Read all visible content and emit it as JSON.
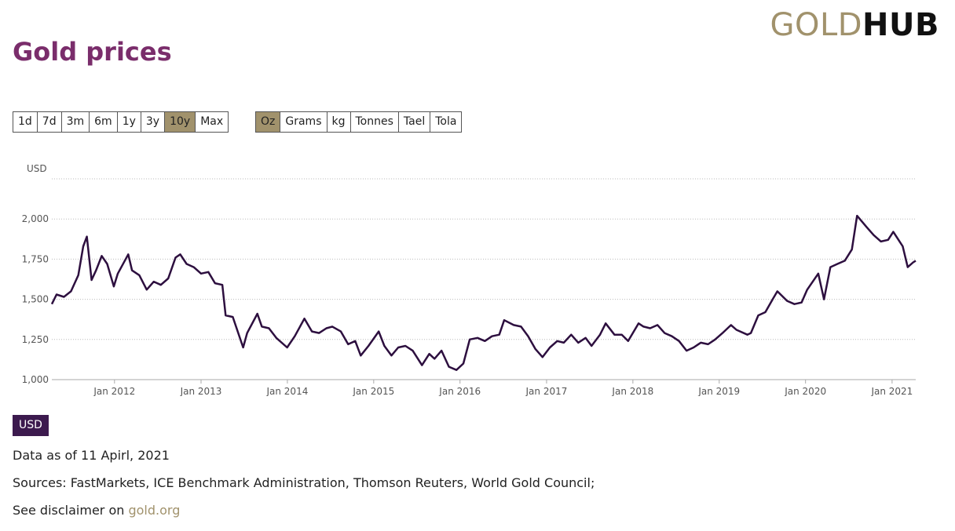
{
  "header": {
    "title": "Gold prices",
    "logo_gold": "GOLD",
    "logo_hub": "HUB"
  },
  "colors": {
    "title": "#7a2d6b",
    "logo_gold": "#a1926c",
    "active_button": "#a1926c",
    "line": "#2d0f3f",
    "badge": "#3c1a4e",
    "link": "#a1926c"
  },
  "period_buttons": [
    {
      "label": "1d",
      "active": false
    },
    {
      "label": "7d",
      "active": false
    },
    {
      "label": "3m",
      "active": false
    },
    {
      "label": "6m",
      "active": false
    },
    {
      "label": "1y",
      "active": false
    },
    {
      "label": "3y",
      "active": false
    },
    {
      "label": "10y",
      "active": true
    },
    {
      "label": "Max",
      "active": false
    }
  ],
  "unit_buttons": [
    {
      "label": "Oz",
      "active": true
    },
    {
      "label": "Grams",
      "active": false
    },
    {
      "label": "kg",
      "active": false
    },
    {
      "label": "Tonnes",
      "active": false
    },
    {
      "label": "Tael",
      "active": false
    },
    {
      "label": "Tola",
      "active": false
    }
  ],
  "currency_badge": "USD",
  "footer": {
    "data_as_of": "Data as of 11 Apirl, 2021",
    "sources": "Sources: FastMarkets, ICE Benchmark Administration, Thomson Reuters, World Gold Council;",
    "disclaimer_prefix": "See disclaimer on ",
    "disclaimer_link": "gold.org"
  },
  "chart_data": {
    "type": "line",
    "ylabel": "USD",
    "ylim": [
      1000,
      2250
    ],
    "yticks": [
      {
        "value": 1000,
        "label": "1,000"
      },
      {
        "value": 1250,
        "label": "1,250"
      },
      {
        "value": 1500,
        "label": "1,500"
      },
      {
        "value": 1750,
        "label": "1,750"
      },
      {
        "value": 2000,
        "label": "2,000"
      }
    ],
    "xlim": [
      "2011-04-11",
      "2021-04-11"
    ],
    "xticks": [
      {
        "value": "2012-01-01",
        "label": "Jan 2012"
      },
      {
        "value": "2013-01-01",
        "label": "Jan 2013"
      },
      {
        "value": "2014-01-01",
        "label": "Jan 2014"
      },
      {
        "value": "2015-01-01",
        "label": "Jan 2015"
      },
      {
        "value": "2016-01-01",
        "label": "Jan 2016"
      },
      {
        "value": "2017-01-01",
        "label": "Jan 2017"
      },
      {
        "value": "2018-01-01",
        "label": "Jan 2018"
      },
      {
        "value": "2019-01-01",
        "label": "Jan 2019"
      },
      {
        "value": "2020-01-01",
        "label": "Jan 2020"
      },
      {
        "value": "2021-01-01",
        "label": "Jan 2021"
      }
    ],
    "grid": true,
    "series": [
      {
        "x": [
          "2011-04-11",
          "2011-05-01",
          "2011-06-01",
          "2011-07-01",
          "2011-08-01",
          "2011-08-22",
          "2011-09-06",
          "2011-09-26",
          "2011-10-15",
          "2011-11-08",
          "2011-12-01",
          "2011-12-29",
          "2012-01-15",
          "2012-02-28",
          "2012-03-15",
          "2012-04-15",
          "2012-05-16",
          "2012-06-15",
          "2012-07-15",
          "2012-08-15",
          "2012-09-15",
          "2012-10-05",
          "2012-11-01",
          "2012-12-01",
          "2013-01-01",
          "2013-02-01",
          "2013-03-01",
          "2013-04-01",
          "2013-04-15",
          "2013-05-15",
          "2013-06-28",
          "2013-07-15",
          "2013-08-27",
          "2013-09-15",
          "2013-10-15",
          "2013-11-15",
          "2013-12-31",
          "2014-02-01",
          "2014-03-14",
          "2014-04-15",
          "2014-05-15",
          "2014-06-15",
          "2014-07-10",
          "2014-08-15",
          "2014-09-15",
          "2014-10-15",
          "2014-11-07",
          "2014-12-10",
          "2015-01-22",
          "2015-02-15",
          "2015-03-17",
          "2015-04-15",
          "2015-05-15",
          "2015-06-15",
          "2015-07-24",
          "2015-08-24",
          "2015-09-15",
          "2015-10-15",
          "2015-11-15",
          "2015-12-17",
          "2016-01-15",
          "2016-02-11",
          "2016-03-15",
          "2016-04-15",
          "2016-05-15",
          "2016-06-15",
          "2016-07-06",
          "2016-08-15",
          "2016-09-15",
          "2016-10-15",
          "2016-11-15",
          "2016-12-15",
          "2017-01-15",
          "2017-02-15",
          "2017-03-15",
          "2017-04-15",
          "2017-05-15",
          "2017-06-15",
          "2017-07-10",
          "2017-08-15",
          "2017-09-08",
          "2017-10-15",
          "2017-11-15",
          "2017-12-12",
          "2018-01-25",
          "2018-02-15",
          "2018-03-15",
          "2018-04-15",
          "2018-05-15",
          "2018-06-15",
          "2018-07-15",
          "2018-08-16",
          "2018-09-15",
          "2018-10-15",
          "2018-11-15",
          "2018-12-15",
          "2019-01-15",
          "2019-02-20",
          "2019-03-15",
          "2019-04-30",
          "2019-05-15",
          "2019-06-15",
          "2019-07-15",
          "2019-08-15",
          "2019-09-04",
          "2019-10-15",
          "2019-11-15",
          "2019-12-15",
          "2020-01-08",
          "2020-02-24",
          "2020-03-19",
          "2020-04-15",
          "2020-05-15",
          "2020-06-15",
          "2020-07-15",
          "2020-08-06",
          "2020-09-15",
          "2020-10-15",
          "2020-11-15",
          "2020-12-15",
          "2021-01-06",
          "2021-02-15",
          "2021-03-08",
          "2021-03-31",
          "2021-04-11"
        ],
        "y": [
          1470,
          1530,
          1515,
          1550,
          1650,
          1830,
          1890,
          1620,
          1680,
          1770,
          1720,
          1580,
          1660,
          1780,
          1680,
          1650,
          1560,
          1610,
          1590,
          1630,
          1760,
          1780,
          1720,
          1700,
          1660,
          1670,
          1600,
          1590,
          1400,
          1390,
          1200,
          1290,
          1410,
          1330,
          1320,
          1260,
          1200,
          1270,
          1380,
          1300,
          1290,
          1320,
          1330,
          1300,
          1220,
          1240,
          1150,
          1210,
          1300,
          1210,
          1150,
          1200,
          1210,
          1180,
          1090,
          1160,
          1130,
          1180,
          1080,
          1060,
          1100,
          1250,
          1260,
          1240,
          1270,
          1280,
          1370,
          1340,
          1330,
          1270,
          1190,
          1140,
          1200,
          1240,
          1230,
          1280,
          1230,
          1260,
          1210,
          1280,
          1350,
          1280,
          1280,
          1240,
          1350,
          1330,
          1320,
          1340,
          1290,
          1270,
          1240,
          1180,
          1200,
          1230,
          1220,
          1250,
          1290,
          1340,
          1310,
          1280,
          1290,
          1400,
          1420,
          1500,
          1550,
          1490,
          1470,
          1480,
          1560,
          1660,
          1500,
          1700,
          1720,
          1740,
          1810,
          2020,
          1950,
          1900,
          1860,
          1870,
          1920,
          1830,
          1700,
          1730,
          1740
        ]
      }
    ]
  }
}
